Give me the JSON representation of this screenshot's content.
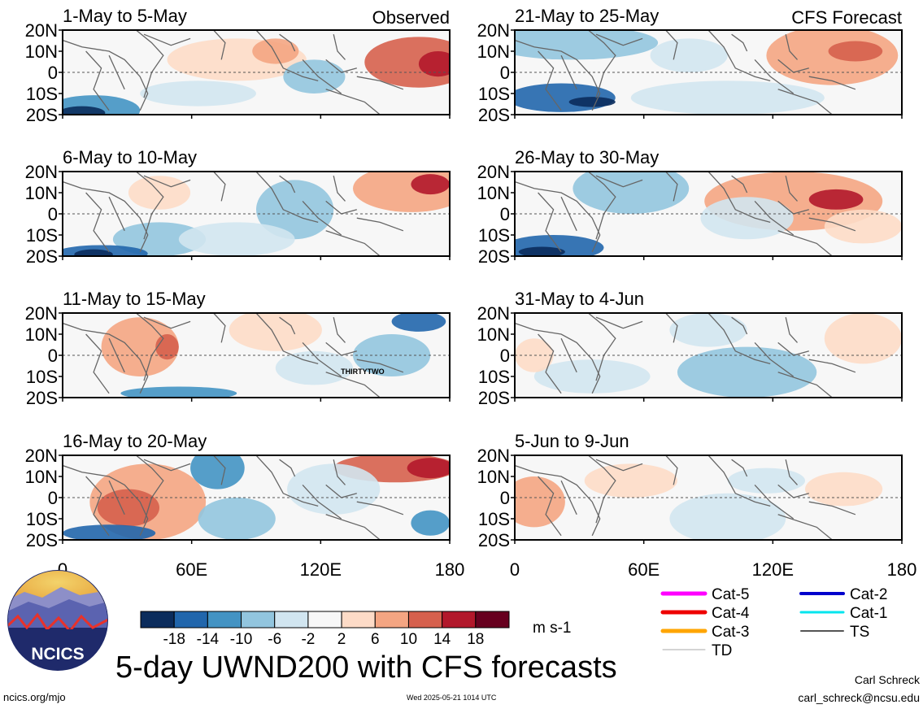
{
  "main_title": "5-day UWND200 with CFS forecasts",
  "website": "ncics.org/mjo",
  "timestamp": "Wed 2025-05-21 1014 UTC",
  "author": "Carl Schreck",
  "email": "carl_schreck@ncsu.edu",
  "logo_text": "NCICS",
  "units": "m s-1",
  "column_labels": {
    "left": "Observed",
    "right": "CFS Forecast"
  },
  "lat_labels": [
    "20N",
    "10N",
    "0",
    "10S",
    "20S"
  ],
  "lon_labels": [
    "0",
    "60E",
    "120E",
    "180"
  ],
  "colorbar": {
    "ticks": [
      "-18",
      "-14",
      "-10",
      "-6",
      "-2",
      "2",
      "6",
      "10",
      "14",
      "18"
    ],
    "colors": [
      "#0b2c5c",
      "#2166ac",
      "#4393c3",
      "#92c5de",
      "#d1e5f0",
      "#f7f7f7",
      "#fddbc7",
      "#f4a582",
      "#d6604d",
      "#b2182b",
      "#67001f"
    ]
  },
  "legend": [
    {
      "label": "Cat-5",
      "color": "#ff00ff",
      "width": 5
    },
    {
      "label": "Cat-2",
      "color": "#0000cc",
      "width": 4
    },
    {
      "label": "Cat-4",
      "color": "#ee0000",
      "width": 5
    },
    {
      "label": "Cat-1",
      "color": "#00e5ee",
      "width": 3
    },
    {
      "label": "Cat-3",
      "color": "#ffa500",
      "width": 5
    },
    {
      "label": "TS",
      "color": "#555555",
      "width": 2
    },
    {
      "label": "TD",
      "color": "#aaaaaa",
      "width": 1
    }
  ],
  "storm_label": "THIRTYTWO",
  "panels": [
    {
      "title": "1-May to 5-May",
      "col": 0,
      "row": 0,
      "kind": "observed"
    },
    {
      "title": "6-May to 10-May",
      "col": 0,
      "row": 1,
      "kind": "observed"
    },
    {
      "title": "11-May to 15-May",
      "col": 0,
      "row": 2,
      "kind": "observed"
    },
    {
      "title": "16-May to 20-May",
      "col": 0,
      "row": 3,
      "kind": "observed"
    },
    {
      "title": "21-May to 25-May",
      "col": 1,
      "row": 0,
      "kind": "forecast"
    },
    {
      "title": "26-May to 30-May",
      "col": 1,
      "row": 1,
      "kind": "forecast"
    },
    {
      "title": "31-May to 4-Jun",
      "col": 1,
      "row": 2,
      "kind": "forecast"
    },
    {
      "title": "5-Jun to 9-Jun",
      "col": 1,
      "row": 3,
      "kind": "forecast"
    }
  ]
}
